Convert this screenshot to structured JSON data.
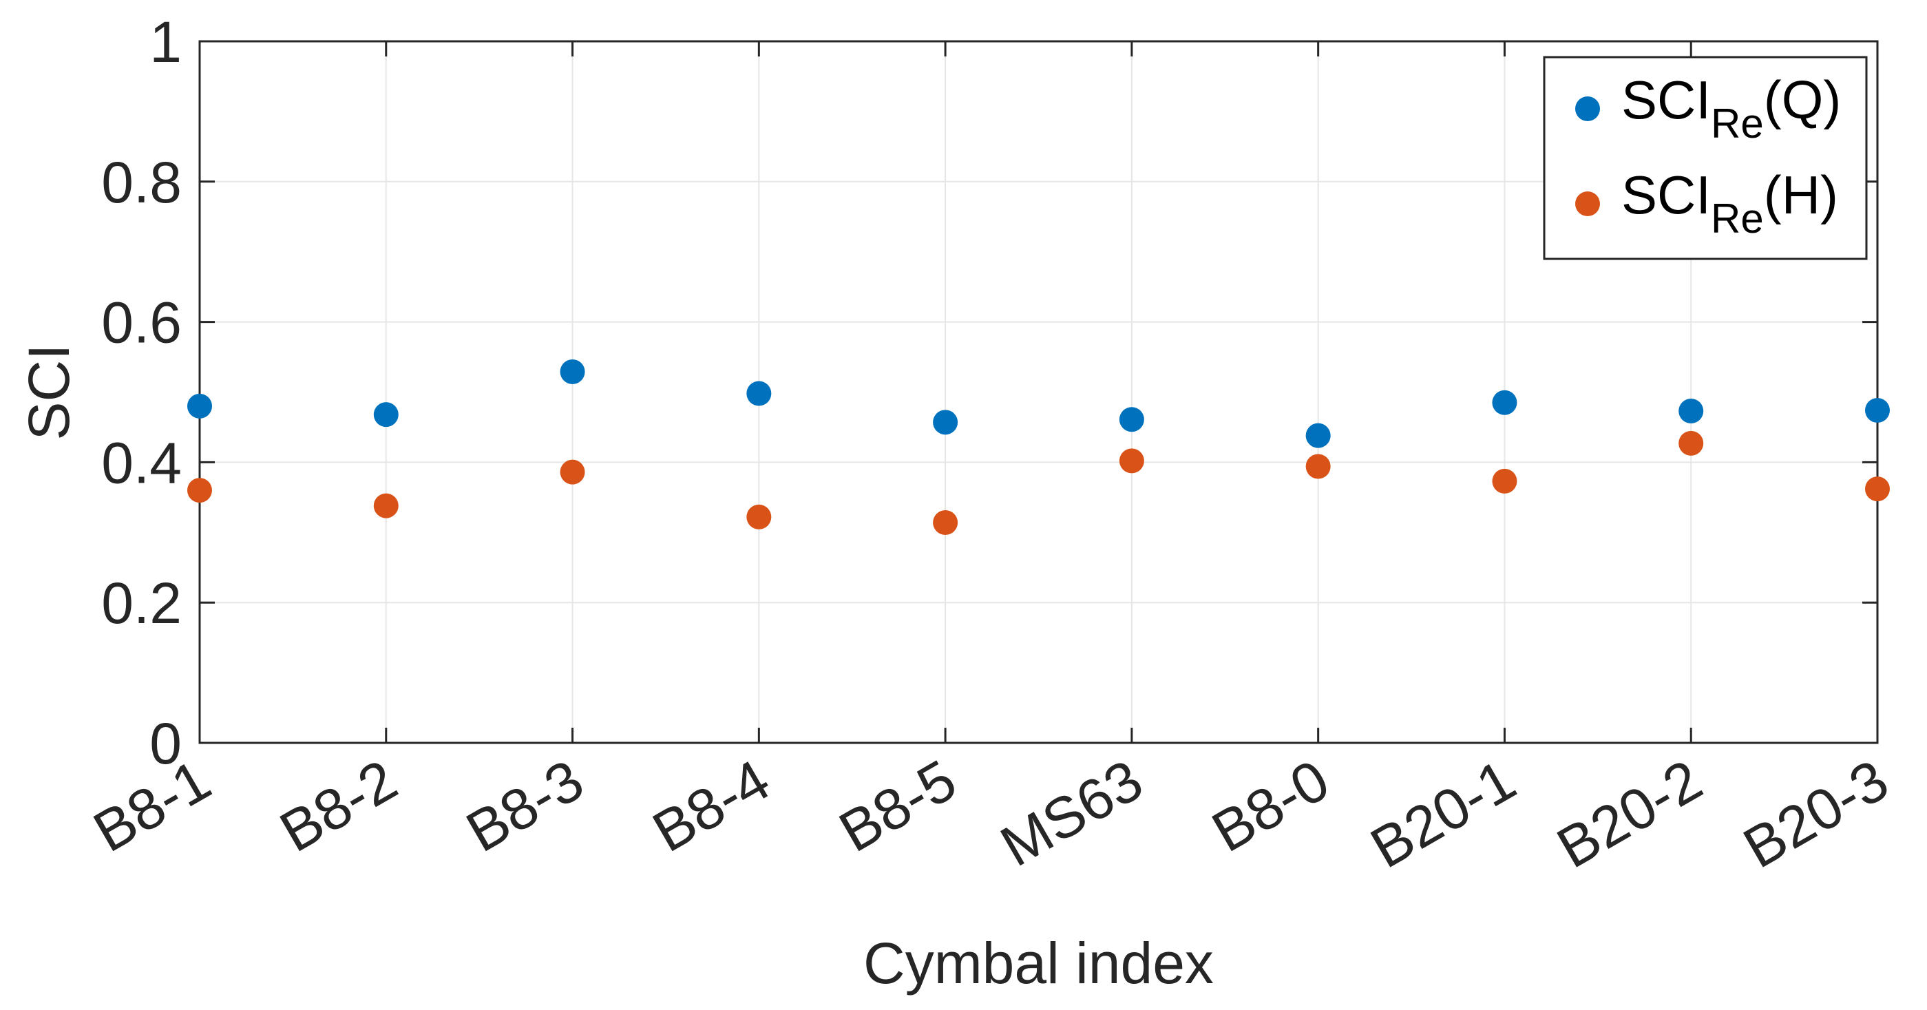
{
  "chart_data": {
    "type": "scatter",
    "xlabel": "Cymbal index",
    "ylabel": "SCI",
    "categories": [
      "B8-1",
      "B8-2",
      "B8-3",
      "B8-4",
      "B8-5",
      "MS63",
      "B8-0",
      "B20-1",
      "B20-2",
      "B20-3"
    ],
    "ylim": [
      0,
      1
    ],
    "yticks": [
      "0",
      "0.2",
      "0.4",
      "0.6",
      "0.8",
      "1"
    ],
    "grid": true,
    "legend_position": "top-right",
    "series": [
      {
        "name": "SCI_Re(Q)",
        "legend_base": "SCI",
        "legend_sub": "Re",
        "legend_suffix": "(Q)",
        "color": "#0072bd",
        "values": [
          0.48,
          0.468,
          0.529,
          0.498,
          0.457,
          0.461,
          0.438,
          0.485,
          0.473,
          0.474
        ]
      },
      {
        "name": "SCI_Re(H)",
        "legend_base": "SCI",
        "legend_sub": "Re",
        "legend_suffix": "(H)",
        "color": "#d95319",
        "values": [
          0.36,
          0.338,
          0.386,
          0.322,
          0.314,
          0.402,
          0.394,
          0.373,
          0.427,
          0.362
        ]
      }
    ]
  }
}
